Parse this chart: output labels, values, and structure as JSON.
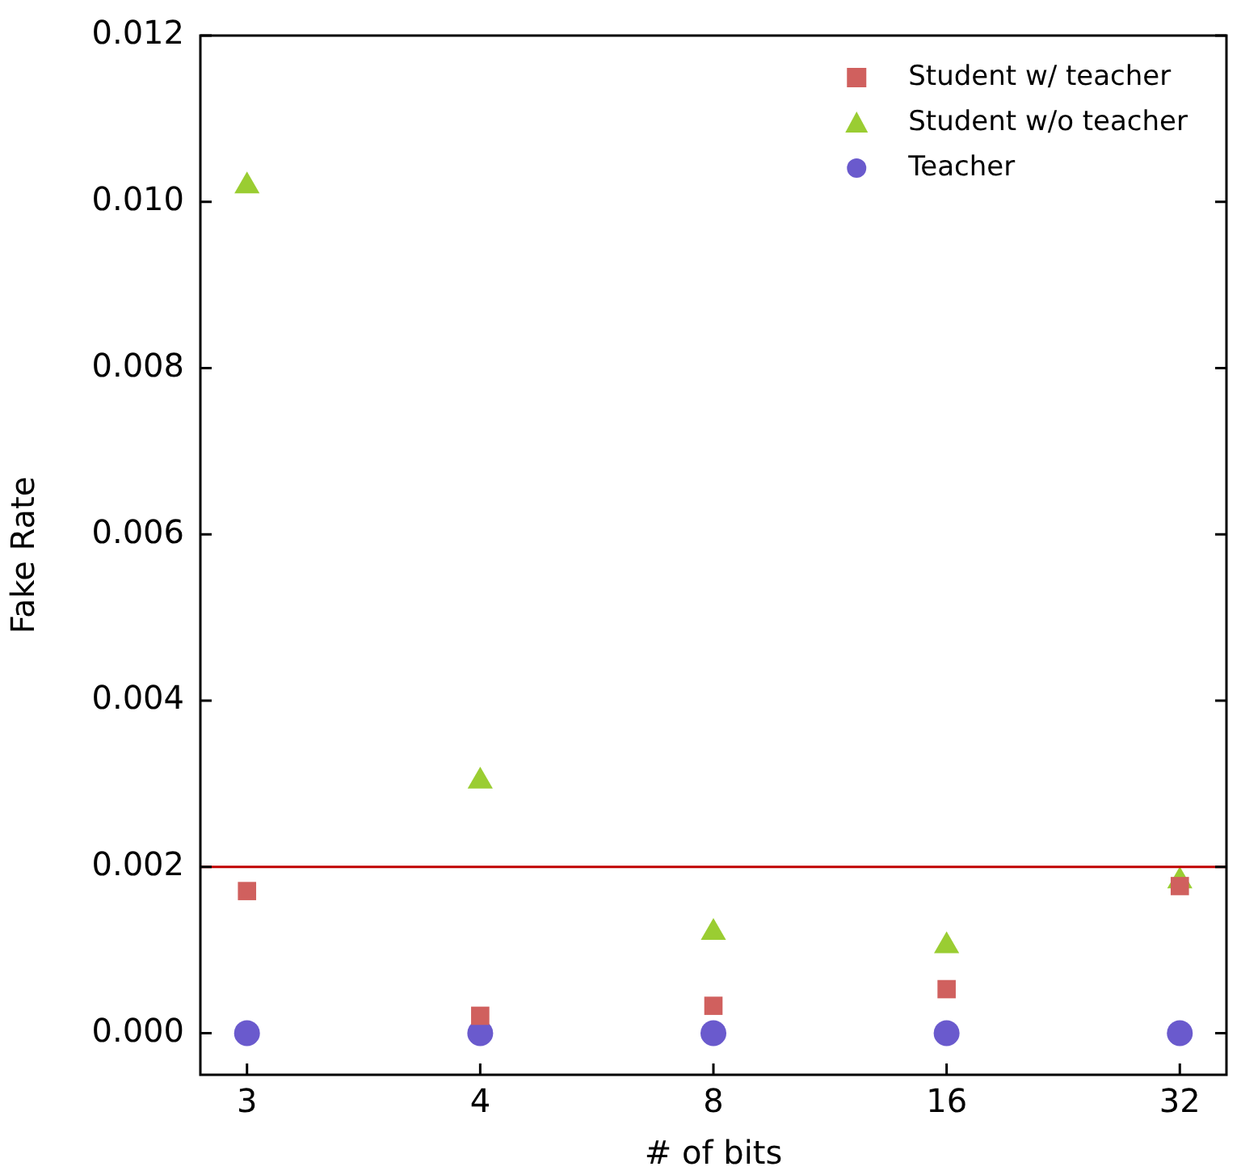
{
  "chart_data": {
    "type": "scatter",
    "xlabel": "# of bits",
    "ylabel": "Fake Rate",
    "categories": [
      "3",
      "4",
      "8",
      "16",
      "32"
    ],
    "series": [
      {
        "name": "Student w/ teacher",
        "color": "#d0605e",
        "marker": "square",
        "values": [
          0.00171,
          0.00021,
          0.00033,
          0.00053,
          0.00177
        ]
      },
      {
        "name": "Student w/o teacher",
        "color": "#9acd32",
        "marker": "triangle",
        "values": [
          0.01019,
          0.00303,
          0.00121,
          0.00105,
          0.00183
        ]
      },
      {
        "name": "Teacher",
        "color": "#6a5acd",
        "marker": "circle",
        "values": [
          0,
          0,
          0,
          0,
          0
        ]
      }
    ],
    "ylim": [
      -0.0005,
      0.012
    ],
    "yticks": [
      {
        "value": 0,
        "label": "0.000"
      },
      {
        "value": 0.002,
        "label": "0.002"
      },
      {
        "value": 0.004,
        "label": "0.004"
      },
      {
        "value": 0.006,
        "label": "0.006"
      },
      {
        "value": 0.008,
        "label": "0.008"
      },
      {
        "value": 0.01,
        "label": "0.010"
      },
      {
        "value": 0.012,
        "label": "0.012"
      }
    ],
    "ref_lines": [
      {
        "axis": "y",
        "value": 0.002,
        "color": "#c00000"
      }
    ],
    "grid": false,
    "legend": "top right"
  }
}
